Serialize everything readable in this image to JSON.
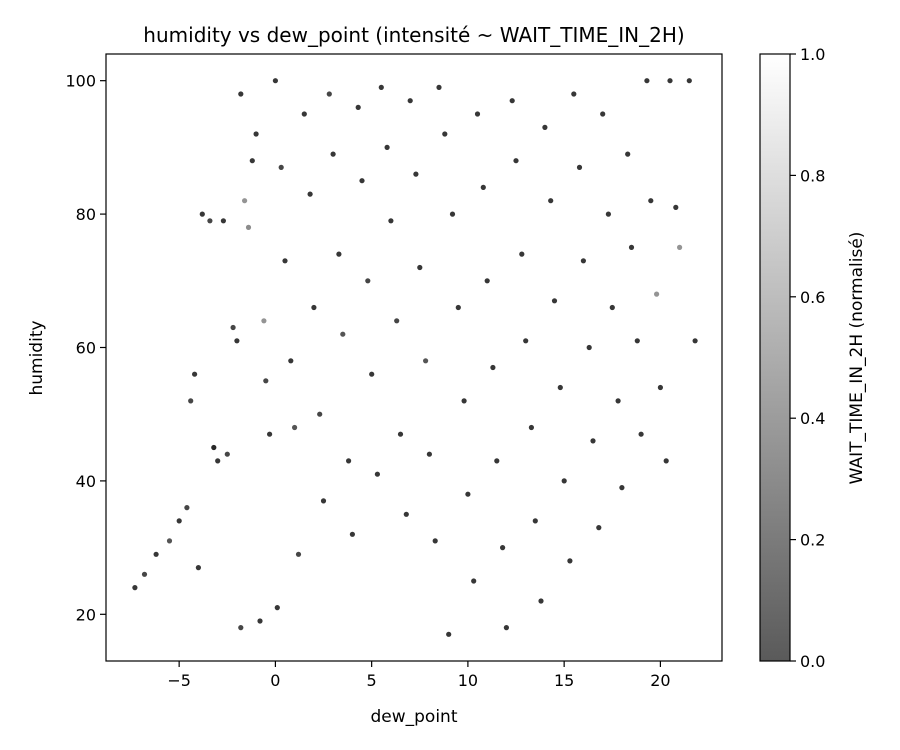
{
  "chart_data": {
    "type": "scatter",
    "title": "humidity vs dew_point (intensité ~ WAIT_TIME_IN_2H)",
    "xlabel": "dew_point",
    "ylabel": "humidity",
    "xlim": [
      -8.8,
      23.2
    ],
    "ylim": [
      13,
      104
    ],
    "x_ticks": [
      -5,
      0,
      5,
      10,
      15,
      20
    ],
    "y_ticks": [
      20,
      40,
      60,
      80,
      100
    ],
    "grid": false,
    "colorbar": {
      "label": "WAIT_TIME_IN_2H (normalisé)",
      "range": [
        0,
        1
      ],
      "ticks": [
        0.0,
        0.2,
        0.4,
        0.6,
        0.8,
        1.0
      ],
      "tick_labels": [
        "0.0",
        "0.2",
        "0.4",
        "0.6",
        "0.8",
        "1.0"
      ],
      "colormap": "grayscale",
      "color_low": "#5a5a5a",
      "color_high": "#ffffff"
    },
    "series": [
      {
        "values_note": "",
        "points": [
          [
            -7.3,
            24,
            0.05
          ],
          [
            -6.8,
            26,
            0.1
          ],
          [
            -6.2,
            29,
            0.05
          ],
          [
            -5.5,
            31,
            0.15
          ],
          [
            -5.0,
            34,
            0.05
          ],
          [
            -4.6,
            36,
            0.1
          ],
          [
            -4.4,
            52,
            0.1
          ],
          [
            -4.2,
            56,
            0.05
          ],
          [
            -4.0,
            27,
            0.05
          ],
          [
            -3.8,
            80,
            0.05
          ],
          [
            -3.4,
            79,
            0.1
          ],
          [
            -3.2,
            45,
            0.0
          ],
          [
            -3.0,
            43,
            0.05
          ],
          [
            -2.7,
            79,
            0.05
          ],
          [
            -2.5,
            44,
            0.1
          ],
          [
            -2.2,
            63,
            0.1
          ],
          [
            -2.0,
            61,
            0.05
          ],
          [
            -1.8,
            98,
            0.05
          ],
          [
            -1.8,
            18,
            0.1
          ],
          [
            -1.6,
            82,
            0.35
          ],
          [
            -1.4,
            78,
            0.3
          ],
          [
            -1.2,
            88,
            0.05
          ],
          [
            -1.0,
            92,
            0.05
          ],
          [
            -0.8,
            19,
            0.05
          ],
          [
            -0.6,
            64,
            0.35
          ],
          [
            -0.5,
            55,
            0.1
          ],
          [
            -0.3,
            47,
            0.05
          ],
          [
            0.0,
            100,
            0.05
          ],
          [
            0.1,
            21,
            0.05
          ],
          [
            0.3,
            87,
            0.1
          ],
          [
            0.5,
            73,
            0.05
          ],
          [
            0.8,
            58,
            0.05
          ],
          [
            1.0,
            48,
            0.15
          ],
          [
            1.2,
            29,
            0.1
          ],
          [
            1.5,
            95,
            0.05
          ],
          [
            1.8,
            83,
            0.05
          ],
          [
            2.0,
            66,
            0.05
          ],
          [
            2.3,
            50,
            0.1
          ],
          [
            2.5,
            37,
            0.05
          ],
          [
            2.8,
            98,
            0.1
          ],
          [
            3.0,
            89,
            0.05
          ],
          [
            3.3,
            74,
            0.05
          ],
          [
            3.5,
            62,
            0.15
          ],
          [
            3.8,
            43,
            0.05
          ],
          [
            4.0,
            32,
            0.05
          ],
          [
            4.3,
            96,
            0.05
          ],
          [
            4.5,
            85,
            0.05
          ],
          [
            4.8,
            70,
            0.1
          ],
          [
            5.0,
            56,
            0.05
          ],
          [
            5.3,
            41,
            0.05
          ],
          [
            5.5,
            99,
            0.05
          ],
          [
            5.8,
            90,
            0.05
          ],
          [
            6.0,
            79,
            0.05
          ],
          [
            6.3,
            64,
            0.1
          ],
          [
            6.5,
            47,
            0.05
          ],
          [
            6.8,
            35,
            0.05
          ],
          [
            7.0,
            97,
            0.05
          ],
          [
            7.3,
            86,
            0.05
          ],
          [
            7.5,
            72,
            0.05
          ],
          [
            7.8,
            58,
            0.15
          ],
          [
            8.0,
            44,
            0.05
          ],
          [
            8.3,
            31,
            0.05
          ],
          [
            8.5,
            99,
            0.05
          ],
          [
            8.8,
            92,
            0.05
          ],
          [
            9.0,
            17,
            0.05
          ],
          [
            9.2,
            80,
            0.05
          ],
          [
            9.5,
            66,
            0.05
          ],
          [
            9.8,
            52,
            0.05
          ],
          [
            10.0,
            38,
            0.05
          ],
          [
            10.3,
            25,
            0.05
          ],
          [
            10.5,
            95,
            0.05
          ],
          [
            10.8,
            84,
            0.05
          ],
          [
            11.0,
            70,
            0.05
          ],
          [
            11.3,
            57,
            0.05
          ],
          [
            11.5,
            43,
            0.05
          ],
          [
            11.8,
            30,
            0.05
          ],
          [
            12.0,
            18,
            0.05
          ],
          [
            12.3,
            97,
            0.05
          ],
          [
            12.5,
            88,
            0.05
          ],
          [
            12.8,
            74,
            0.05
          ],
          [
            13.0,
            61,
            0.05
          ],
          [
            13.3,
            48,
            0.05
          ],
          [
            13.5,
            34,
            0.05
          ],
          [
            13.8,
            22,
            0.05
          ],
          [
            14.0,
            93,
            0.05
          ],
          [
            14.3,
            82,
            0.05
          ],
          [
            14.5,
            67,
            0.05
          ],
          [
            14.8,
            54,
            0.05
          ],
          [
            15.0,
            40,
            0.05
          ],
          [
            15.3,
            28,
            0.05
          ],
          [
            15.5,
            98,
            0.05
          ],
          [
            15.8,
            87,
            0.05
          ],
          [
            16.0,
            73,
            0.05
          ],
          [
            16.3,
            60,
            0.05
          ],
          [
            16.5,
            46,
            0.05
          ],
          [
            16.8,
            33,
            0.05
          ],
          [
            17.0,
            95,
            0.05
          ],
          [
            17.3,
            80,
            0.05
          ],
          [
            17.5,
            66,
            0.05
          ],
          [
            17.8,
            52,
            0.05
          ],
          [
            18.0,
            39,
            0.05
          ],
          [
            18.3,
            89,
            0.05
          ],
          [
            18.5,
            75,
            0.05
          ],
          [
            18.8,
            61,
            0.05
          ],
          [
            19.0,
            47,
            0.05
          ],
          [
            19.3,
            100,
            0.05
          ],
          [
            19.5,
            82,
            0.05
          ],
          [
            19.8,
            68,
            0.35
          ],
          [
            20.0,
            54,
            0.05
          ],
          [
            20.3,
            43,
            0.05
          ],
          [
            20.8,
            81,
            0.05
          ],
          [
            21.0,
            75,
            0.35
          ],
          [
            21.5,
            100,
            0.05
          ],
          [
            21.8,
            61,
            0.05
          ],
          [
            20.5,
            100,
            0.05
          ]
        ]
      }
    ]
  }
}
